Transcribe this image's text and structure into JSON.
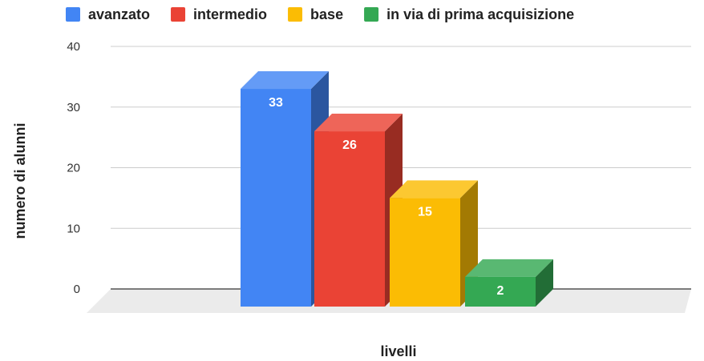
{
  "chart_data": {
    "type": "bar",
    "style": "3d-column",
    "title": "",
    "xlabel": "livelli",
    "ylabel": "numero di alunni",
    "ylim": [
      0,
      40
    ],
    "yticks": [
      0,
      10,
      20,
      30,
      40
    ],
    "grid": true,
    "legend_position": "top",
    "series": [
      {
        "name": "avanzato",
        "value": 33,
        "label": "33",
        "color": "#4285F4",
        "label_color": "#ffffff"
      },
      {
        "name": "intermedio",
        "value": 26,
        "label": "26",
        "color": "#EA4335",
        "label_color": "#ffffff"
      },
      {
        "name": "base",
        "value": 15,
        "label": "15",
        "color": "#FBBC04",
        "label_color": "#ffffff"
      },
      {
        "name": "in via di prima acquisizione",
        "value": 2,
        "label": "2",
        "color": "#34A853",
        "label_color": "#ffffff"
      }
    ]
  }
}
